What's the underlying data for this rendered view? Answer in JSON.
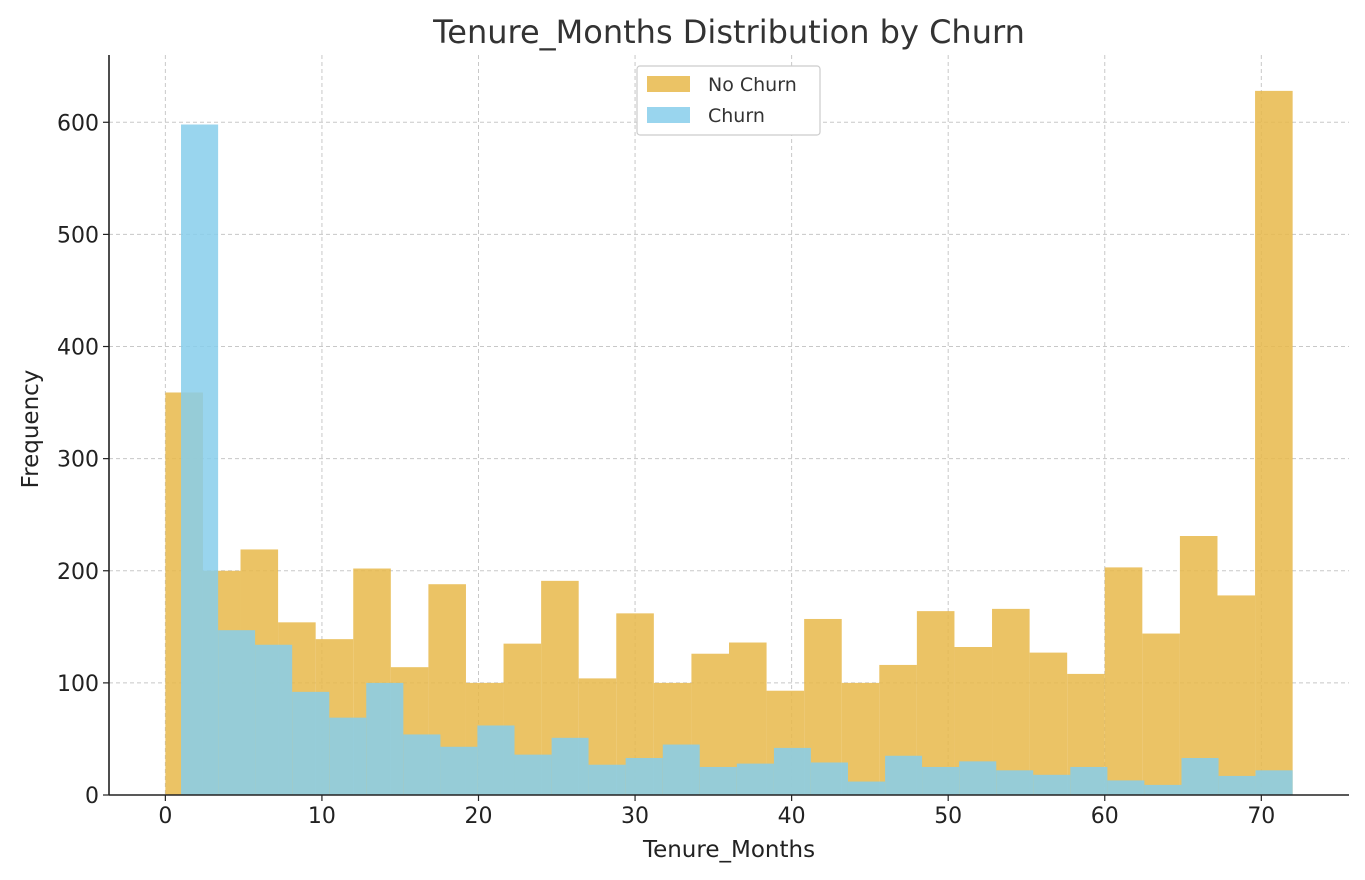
{
  "chart_data": {
    "type": "bar",
    "title": "Tenure_Months Distribution by Churn",
    "xlabel": "Tenure_Months",
    "ylabel": "Frequency",
    "xlim": [
      -3.6,
      75.6
    ],
    "ylim": [
      0,
      660
    ],
    "xticks": [
      0,
      10,
      20,
      30,
      40,
      50,
      60,
      70
    ],
    "yticks": [
      0,
      100,
      200,
      300,
      400,
      500,
      600
    ],
    "grid": true,
    "legend_position": "top-center",
    "series": [
      {
        "name": "No Churn",
        "color": "#E8B84A",
        "opacity": 0.85,
        "bin_edges": [
          0,
          2.4,
          4.8,
          7.2,
          9.6,
          12.0,
          14.4,
          16.8,
          19.2,
          21.6,
          24.0,
          26.4,
          28.8,
          31.2,
          33.6,
          36.0,
          38.4,
          40.8,
          43.2,
          45.6,
          48.0,
          50.4,
          52.8,
          55.2,
          57.6,
          60.0,
          62.4,
          64.8,
          67.2,
          69.6,
          72.0
        ],
        "values": [
          359,
          200,
          219,
          154,
          139,
          202,
          114,
          188,
          100,
          135,
          191,
          104,
          162,
          100,
          126,
          136,
          93,
          157,
          100,
          116,
          164,
          132,
          166,
          127,
          108,
          203,
          144,
          231,
          178,
          628
        ]
      },
      {
        "name": "Churn",
        "color": "#87CEEB",
        "opacity": 0.85,
        "bin_edges": [
          1,
          3.37,
          5.73,
          8.1,
          10.47,
          12.83,
          15.2,
          17.57,
          19.93,
          22.3,
          24.67,
          27.03,
          29.4,
          31.77,
          34.13,
          36.5,
          38.87,
          41.23,
          43.6,
          45.97,
          48.33,
          50.7,
          53.07,
          55.43,
          57.8,
          60.17,
          62.53,
          64.9,
          67.27,
          69.63,
          72.0
        ],
        "values": [
          598,
          147,
          134,
          92,
          69,
          100,
          54,
          43,
          62,
          36,
          51,
          27,
          33,
          45,
          25,
          28,
          42,
          29,
          12,
          35,
          25,
          30,
          22,
          18,
          25,
          13,
          9,
          33,
          17,
          22
        ]
      }
    ]
  }
}
